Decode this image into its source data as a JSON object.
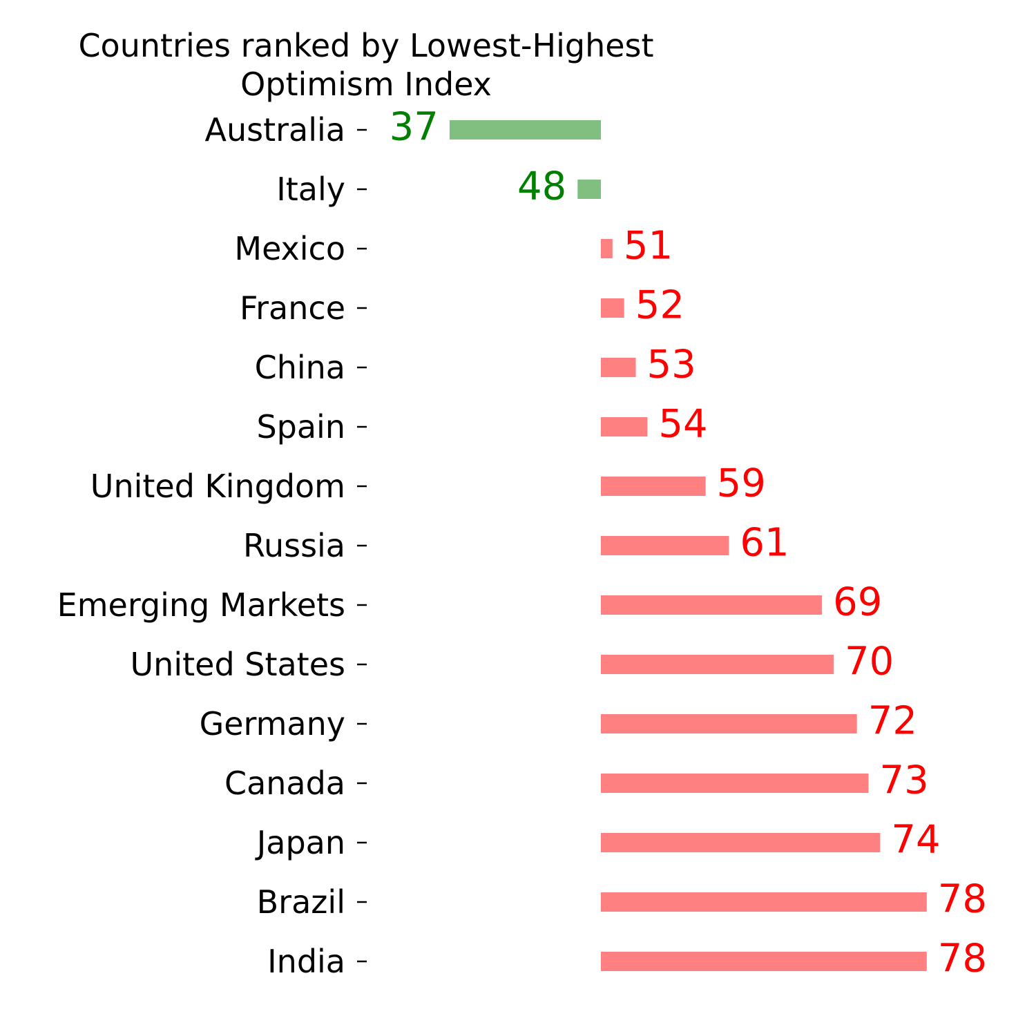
{
  "chart_data": {
    "type": "bar",
    "orientation": "horizontal",
    "title": "Countries ranked by Lowest-Highest\nOptimism Index",
    "xlabel": "",
    "ylabel": "",
    "categories": [
      "Australia",
      "Italy",
      "Mexico",
      "France",
      "China",
      "Spain",
      "United Kingdom",
      "Russia",
      "Emerging Markets",
      "United States",
      "Germany",
      "Canada",
      "Japan",
      "Brazil",
      "India"
    ],
    "values": [
      37,
      48,
      51,
      52,
      53,
      54,
      59,
      61,
      69,
      70,
      72,
      73,
      74,
      78,
      78
    ],
    "baseline": 50,
    "xlim": [
      20,
      90
    ],
    "grid": false,
    "legend": "none",
    "colors": {
      "below_baseline_bar": "#80bf80",
      "below_baseline_label": "#008000",
      "above_baseline_bar": "#ff8080",
      "above_baseline_label": "#ff0000"
    }
  }
}
